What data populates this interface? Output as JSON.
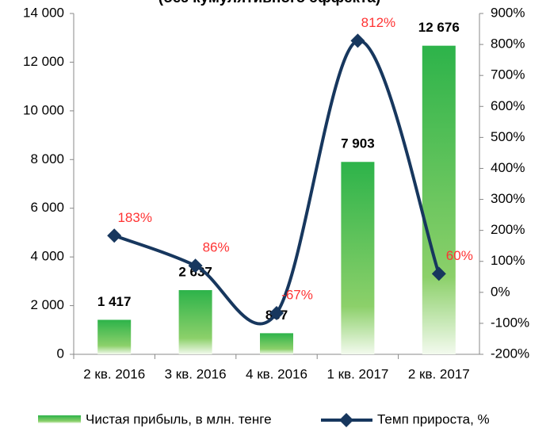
{
  "chart_data": {
    "type": "bar_line",
    "title": "(без кумулятивного эффекта)",
    "categories": [
      "2 кв. 2016",
      "3 кв. 2016",
      "4 кв. 2016",
      "1 кв. 2017",
      "2 кв. 2017"
    ],
    "series": [
      {
        "name": "Чистая прибыль, в млн. тенге",
        "color": "#2db34a",
        "type": "bar",
        "values": [
          1417,
          2637,
          867,
          7903,
          12676
        ],
        "value_labels": [
          "1 417",
          "2 637",
          "867",
          "7 903",
          "12 676"
        ]
      },
      {
        "name": "Темп прироста, %",
        "color": "#17375e",
        "type": "line",
        "axis": "y2",
        "values": [
          183,
          86,
          -67,
          812,
          60
        ],
        "value_labels": [
          "183%",
          "86%",
          "-67%",
          "812%",
          "60%"
        ]
      }
    ],
    "ylim": [
      0,
      14000
    ],
    "yticks": [
      0,
      {
        "value": 2000,
        "label": "2 000"
      },
      {
        "value": 4000,
        "label": "4 000"
      },
      {
        "value": 6000,
        "label": "6 000"
      },
      {
        "value": 8000,
        "label": "8 000"
      },
      {
        "value": 10000,
        "label": "10 000"
      },
      {
        "value": 12000,
        "label": "12 000"
      },
      {
        "value": 14000,
        "label": "14 000"
      }
    ],
    "y2lim": [
      -200,
      900
    ],
    "y2ticks": [
      {
        "value": -200,
        "label": "-200%"
      },
      {
        "value": -100,
        "label": "-100%"
      },
      {
        "value": 0,
        "label": "0%"
      },
      {
        "value": 100,
        "label": "100%"
      },
      {
        "value": 200,
        "label": "200%"
      },
      {
        "value": 300,
        "label": "300%"
      },
      {
        "value": 400,
        "label": "400%"
      },
      {
        "value": 500,
        "label": "500%"
      },
      {
        "value": 600,
        "label": "600%"
      },
      {
        "value": 700,
        "label": "700%"
      },
      {
        "value": 800,
        "label": "800%"
      },
      {
        "value": 900,
        "label": "900%"
      }
    ],
    "label_color": "#ff3333"
  }
}
